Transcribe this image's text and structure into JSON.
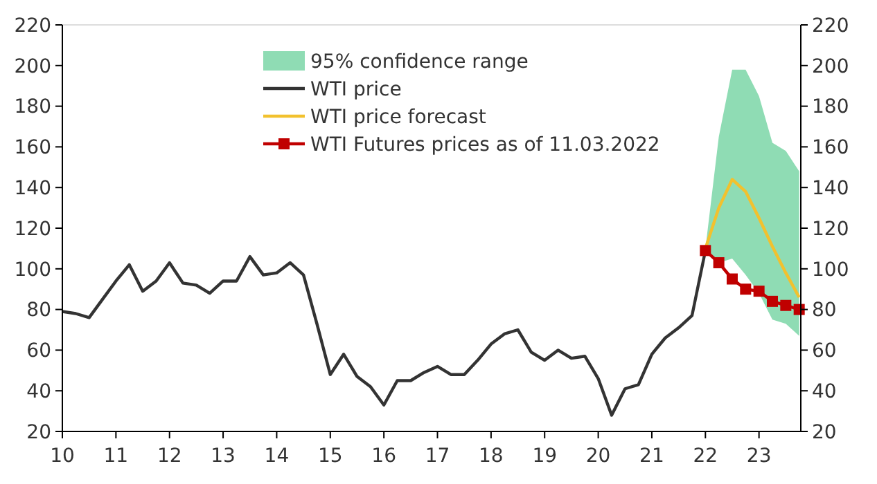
{
  "chart_data": {
    "type": "line",
    "x": [
      10,
      10.25,
      10.5,
      10.75,
      11,
      11.25,
      11.5,
      11.75,
      12,
      12.25,
      12.5,
      12.75,
      13,
      13.25,
      13.5,
      13.75,
      14,
      14.25,
      14.5,
      14.75,
      15,
      15.25,
      15.5,
      15.75,
      16,
      16.25,
      16.5,
      16.75,
      17,
      17.25,
      17.5,
      17.75,
      18,
      18.25,
      18.5,
      18.75,
      19,
      19.25,
      19.5,
      19.75,
      20,
      20.25,
      20.5,
      20.75,
      21,
      21.25,
      21.5,
      21.75,
      22
    ],
    "xlim": [
      10,
      23.78
    ],
    "xticks": [
      10,
      11,
      12,
      13,
      14,
      15,
      16,
      17,
      18,
      19,
      20,
      21,
      22,
      23
    ],
    "ylim": [
      20,
      220
    ],
    "yticks": [
      20,
      40,
      60,
      80,
      100,
      120,
      140,
      160,
      180,
      200,
      220
    ],
    "y2lim": [
      20,
      220
    ],
    "y2ticks": [
      20,
      40,
      60,
      80,
      100,
      120,
      140,
      160,
      180,
      200,
      220
    ],
    "legend": "top",
    "line_style": "solid",
    "annotations": [
      "95% confidence range"
    ],
    "series": [
      {
        "name": "WTI price",
        "color": "#333333",
        "marker": "none",
        "values": [
          79,
          78,
          76,
          85,
          94,
          102,
          89,
          94,
          103,
          93,
          92,
          88,
          94,
          94,
          106,
          97,
          98,
          103,
          97,
          73,
          48,
          58,
          47,
          42,
          33,
          45,
          45,
          49,
          52,
          48,
          48,
          55,
          63,
          68,
          70,
          59,
          55,
          60,
          56,
          57,
          46,
          28,
          41,
          43,
          58,
          66,
          71,
          77,
          109
        ]
      },
      {
        "name": "WTI price forecast",
        "color": "#f2c12e",
        "marker": "none",
        "x": [
          22,
          22.25,
          22.5,
          22.75,
          23,
          23.25,
          23.5,
          23.75
        ],
        "values": [
          110,
          130,
          144,
          138,
          125,
          111,
          98,
          86
        ],
        "lower": [
          110,
          103,
          105,
          97,
          88,
          75,
          73,
          67
        ],
        "upper": [
          110,
          165,
          198,
          198,
          185,
          162,
          158,
          148
        ]
      },
      {
        "name": "WTI Futures prices as of 11.03.2022",
        "color": "#c00000",
        "marker": "square",
        "x": [
          22,
          22.25,
          22.5,
          22.75,
          23,
          23.25,
          23.5,
          23.75
        ],
        "values": [
          109,
          103,
          95,
          90,
          89,
          84,
          82,
          80
        ]
      }
    ]
  }
}
